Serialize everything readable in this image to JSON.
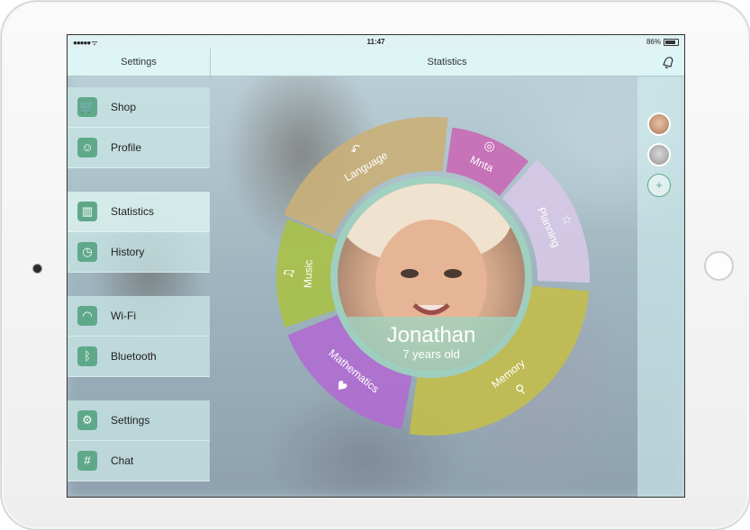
{
  "status_bar": {
    "signal": "●●●●● ᯤ",
    "time": "11:47",
    "battery": "86%"
  },
  "nav": {
    "left_title": "Settings",
    "title": "Statistics"
  },
  "sidebar": {
    "groups": [
      [
        {
          "label": "Shop",
          "icon": "cart-icon",
          "glyph": "🛒"
        },
        {
          "label": "Profile",
          "icon": "profile-icon",
          "glyph": "☺"
        }
      ],
      [
        {
          "label": "Statistics",
          "icon": "bar-chart-icon",
          "glyph": "▥",
          "active": true
        },
        {
          "label": "History",
          "icon": "clock-icon",
          "glyph": "◷"
        }
      ],
      [
        {
          "label": "Wi-Fi",
          "icon": "wifi-icon",
          "glyph": "◠"
        },
        {
          "label": "Bluetooth",
          "icon": "bluetooth-icon",
          "glyph": "ᛒ"
        }
      ],
      [
        {
          "label": "Settings",
          "icon": "gear-icon",
          "glyph": "⚙"
        },
        {
          "label": "Chat",
          "icon": "hash-icon",
          "glyph": "#"
        }
      ]
    ]
  },
  "profile": {
    "name": "Jonathan",
    "age": "7 years old"
  },
  "wheel": {
    "segments": [
      {
        "label": "Language",
        "icon": "undo-arrow-icon",
        "glyph": "↶",
        "color": "#c9b07a"
      },
      {
        "label": "Mnta",
        "icon": "sound-icon",
        "glyph": "◎",
        "color": "#c86bb5"
      },
      {
        "label": "Planning",
        "icon": "star-icon",
        "glyph": "☆",
        "color": "#d6c8e6"
      },
      {
        "label": "Memory",
        "icon": "search-icon",
        "glyph": "⚲",
        "color": "#c2bd4e"
      },
      {
        "label": "Mathematics",
        "icon": "heart-icon",
        "glyph": "♥",
        "color": "#b06ed0"
      },
      {
        "label": "Music",
        "icon": "music-note-icon",
        "glyph": "♫",
        "color": "#a9c04a"
      }
    ]
  },
  "right_strip": {
    "add_label": "+"
  }
}
